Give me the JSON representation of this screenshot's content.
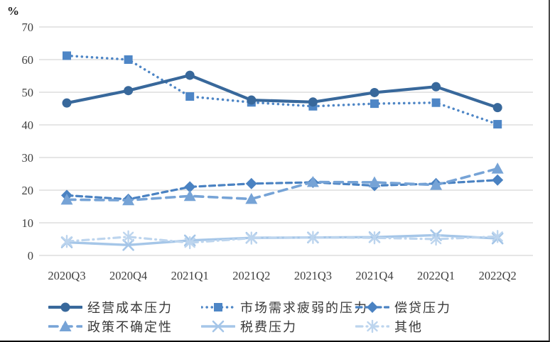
{
  "chart_data": {
    "type": "line",
    "title": "",
    "unit": "%",
    "categories": [
      "2020Q3",
      "2020Q4",
      "2021Q1",
      "2021Q2",
      "2021Q3",
      "2021Q4",
      "2022Q1",
      "2022Q2"
    ],
    "yticks": [
      0,
      10,
      20,
      30,
      40,
      50,
      60,
      70
    ],
    "ylim": [
      0,
      70
    ],
    "grid": "horizontal",
    "legend_position": "bottom",
    "series": [
      {
        "name": "经营成本压力",
        "color": "#38689B",
        "marker": "circle",
        "line_style": "solid",
        "line_width": 4.2,
        "values": [
          46.7,
          50.5,
          55.2,
          47.6,
          47.0,
          49.9,
          51.7,
          45.3
        ]
      },
      {
        "name": "市场需求疲弱的压力",
        "color": "#4E86C6",
        "marker": "square",
        "line_style": "dotted",
        "line_width": 3.5,
        "values": [
          61.2,
          60.0,
          48.7,
          46.9,
          45.7,
          46.5,
          46.8,
          40.2
        ]
      },
      {
        "name": "偿贷压力",
        "color": "#4A82C2",
        "marker": "diamond",
        "line_style": "dashed",
        "line_width": 3.2,
        "values": [
          18.4,
          17.2,
          21.0,
          22.0,
          22.4,
          21.4,
          22.0,
          23.1
        ]
      },
      {
        "name": "政策不确定性",
        "color": "#76A3D6",
        "marker": "triangle",
        "line_style": "longdash",
        "line_width": 3.6,
        "values": [
          17.1,
          16.9,
          18.2,
          17.3,
          22.5,
          22.4,
          21.6,
          26.6
        ]
      },
      {
        "name": "税费压力",
        "color": "#A5C6E8",
        "marker": "x",
        "line_style": "solid",
        "line_width": 3.4,
        "values": [
          4.0,
          3.2,
          4.6,
          5.4,
          5.5,
          5.6,
          6.2,
          5.2
        ]
      },
      {
        "name": "其他",
        "color": "#BDD5EE",
        "marker": "asterisk",
        "line_style": "dashdot",
        "line_width": 3.2,
        "values": [
          4.3,
          5.7,
          3.9,
          5.3,
          5.5,
          5.4,
          5.0,
          5.8
        ]
      }
    ]
  }
}
